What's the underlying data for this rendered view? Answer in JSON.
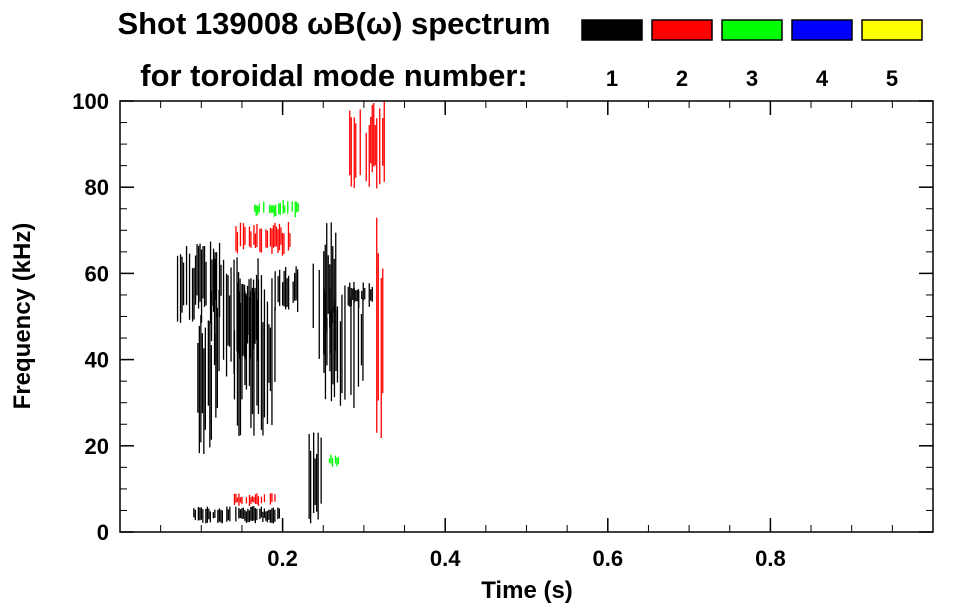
{
  "chart_data": {
    "type": "heatmap",
    "title": "Shot 139008 ωB(ω) spectrum",
    "subtitle": "for toroidal mode number:",
    "xlabel": "Time (s)",
    "ylabel": "Frequency (kHz)",
    "xlim": [
      0.0,
      1.0
    ],
    "ylim": [
      0,
      100
    ],
    "x_ticks": [
      0.2,
      0.4,
      0.6,
      0.8
    ],
    "x_tick_labels": [
      "0.2",
      "0.4",
      "0.6",
      "0.8"
    ],
    "y_ticks": [
      0,
      20,
      40,
      60,
      80,
      100
    ],
    "y_tick_labels": [
      "0",
      "20",
      "40",
      "60",
      "80",
      "100"
    ],
    "grid": false,
    "legend": {
      "placement": "top-right",
      "entries": [
        {
          "label": "1",
          "color": "#000000"
        },
        {
          "label": "2",
          "color": "#ff0000"
        },
        {
          "label": "3",
          "color": "#00ff00"
        },
        {
          "label": "4",
          "color": "#0000ff"
        },
        {
          "label": "5",
          "color": "#ffff00"
        }
      ]
    },
    "regions": [
      {
        "mode": 1,
        "t": [
          0.07,
          0.125
        ],
        "f": [
          48,
          68
        ]
      },
      {
        "mode": 1,
        "t": [
          0.095,
          0.125
        ],
        "f": [
          18,
          55
        ]
      },
      {
        "mode": 1,
        "t": [
          0.11,
          0.17
        ],
        "f": [
          36,
          64
        ]
      },
      {
        "mode": 1,
        "t": [
          0.14,
          0.19
        ],
        "f": [
          22,
          60
        ]
      },
      {
        "mode": 1,
        "t": [
          0.19,
          0.22
        ],
        "f": [
          50,
          62
        ]
      },
      {
        "mode": 1,
        "t": [
          0.09,
          0.2
        ],
        "f": [
          2,
          6
        ]
      },
      {
        "mode": 1,
        "t": [
          0.235,
          0.265
        ],
        "f": [
          40,
          72
        ]
      },
      {
        "mode": 1,
        "t": [
          0.25,
          0.3
        ],
        "f": [
          28,
          60
        ]
      },
      {
        "mode": 1,
        "t": [
          0.28,
          0.31
        ],
        "f": [
          52,
          58
        ]
      },
      {
        "mode": 1,
        "t": [
          0.23,
          0.25
        ],
        "f": [
          2,
          24
        ]
      },
      {
        "mode": 2,
        "t": [
          0.14,
          0.21
        ],
        "f": [
          64,
          72
        ]
      },
      {
        "mode": 2,
        "t": [
          0.28,
          0.325
        ],
        "f": [
          78,
          100
        ]
      },
      {
        "mode": 2,
        "t": [
          0.315,
          0.325
        ],
        "f": [
          20,
          78
        ]
      },
      {
        "mode": 2,
        "t": [
          0.14,
          0.19
        ],
        "f": [
          6,
          9
        ]
      },
      {
        "mode": 3,
        "t": [
          0.165,
          0.22
        ],
        "f": [
          73,
          77
        ]
      },
      {
        "mode": 3,
        "t": [
          0.255,
          0.27
        ],
        "f": [
          15,
          18
        ]
      }
    ]
  }
}
